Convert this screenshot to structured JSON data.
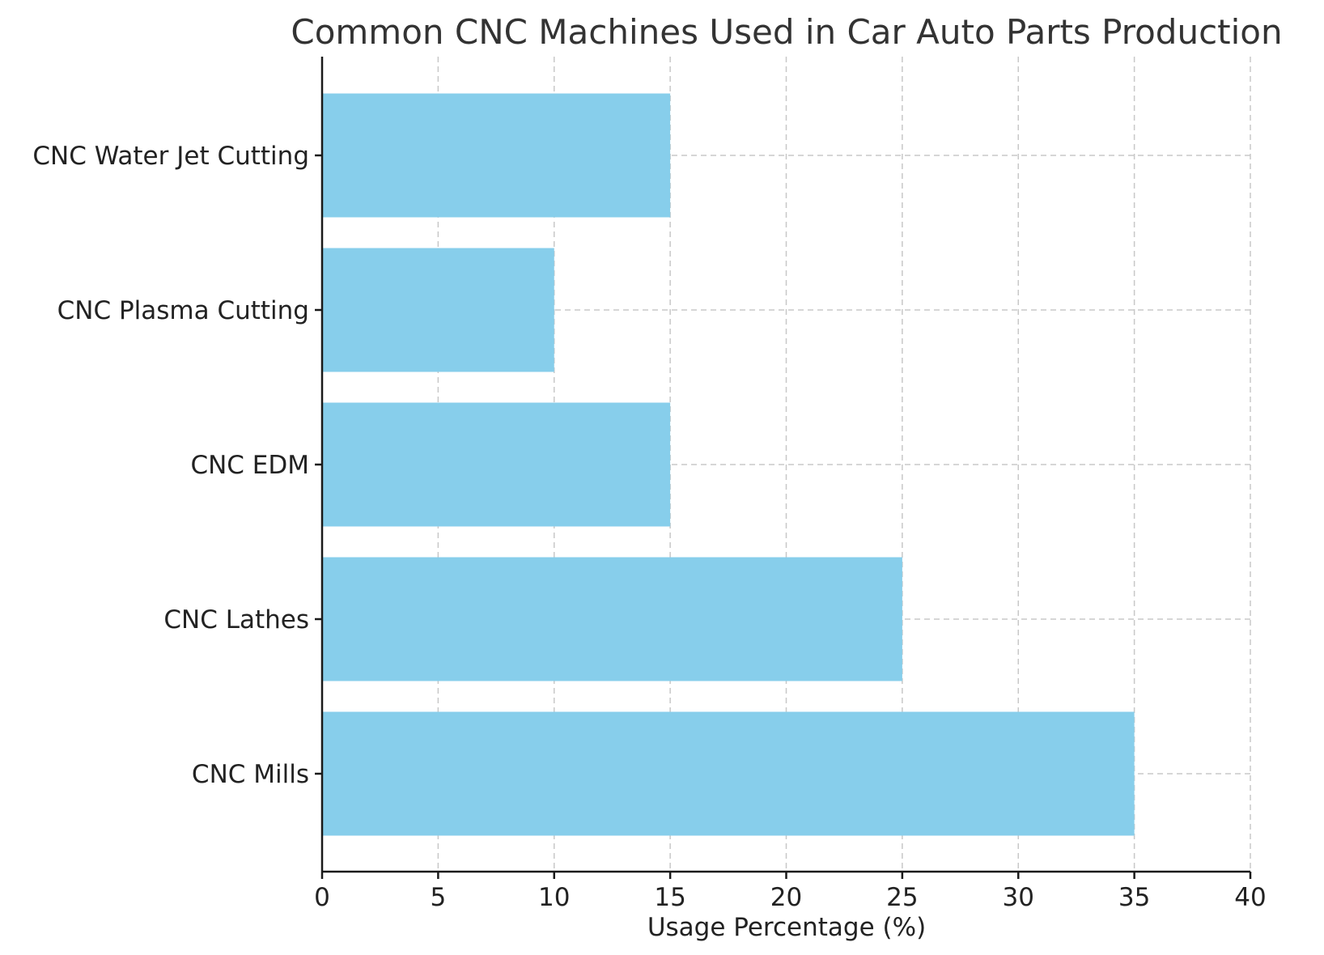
{
  "chart_data": {
    "type": "bar",
    "orientation": "horizontal",
    "title": "Common CNC Machines Used in Car Auto Parts Production",
    "xlabel": "Usage Percentage (%)",
    "ylabel": "",
    "categories": [
      "CNC Mills",
      "CNC Lathes",
      "CNC EDM",
      "CNC Plasma Cutting",
      "CNC Water Jet Cutting"
    ],
    "values": [
      35,
      25,
      15,
      10,
      15
    ],
    "xlim": [
      0,
      40
    ],
    "xticks": [
      0,
      5,
      10,
      15,
      20,
      25,
      30,
      35,
      40
    ],
    "bar_color": "#87CEEB",
    "grid": true,
    "legend": "none"
  }
}
